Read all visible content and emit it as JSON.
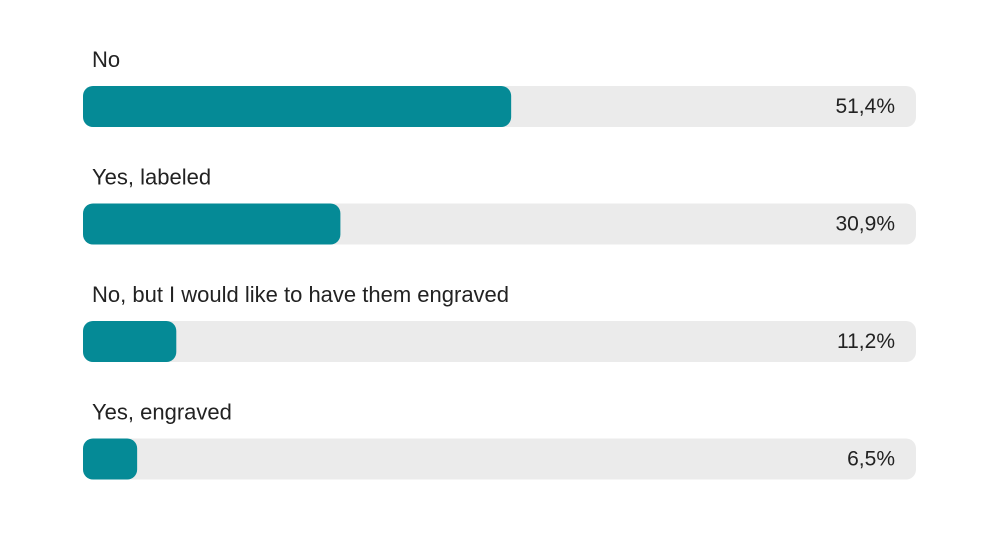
{
  "chart_data": {
    "type": "bar",
    "orientation": "horizontal",
    "categories": [
      "No",
      "Yes, labeled",
      "No, but I would like to have them engraved",
      "Yes, engraved"
    ],
    "values": [
      51.4,
      30.9,
      11.2,
      6.5
    ],
    "value_labels": [
      "51,4%",
      "30,9%",
      "11,2%",
      "6,5%"
    ],
    "color": "#058a96",
    "track_color": "#ebebeb",
    "xlim": [
      0,
      100
    ]
  }
}
